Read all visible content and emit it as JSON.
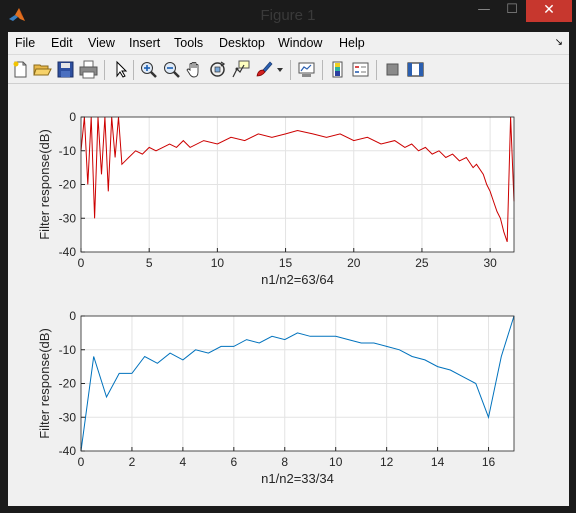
{
  "window": {
    "title": "Figure 1",
    "controls": {
      "minimize": "—",
      "maximize": "☐",
      "close": "✕"
    }
  },
  "menu": [
    "File",
    "Edit",
    "View",
    "Insert",
    "Tools",
    "Desktop",
    "Window",
    "Help"
  ],
  "dock_arrow": "↘",
  "toolbar": [
    "new-figure-icon",
    "open-file-icon",
    "save-icon",
    "print-icon",
    "edit-plot-arrow-icon",
    "zoom-in-icon",
    "zoom-out-icon",
    "pan-hand-icon",
    "rotate-3d-icon",
    "data-cursor-icon",
    "brush-icon",
    "brush-dropdown-icon",
    "link-plot-icon",
    "colorbar-icon",
    "legend-icon",
    "hide-plot-tools-icon",
    "show-plot-tools-icon"
  ],
  "colors": {
    "top_series": "#cc0000",
    "bottom_series": "#0072bd",
    "close_button": "#c7372e"
  },
  "chart_data": [
    {
      "type": "line",
      "title": "",
      "xlabel": "n1/n2=63/64",
      "ylabel": "Filter response(dB)",
      "xlim": [
        0,
        31.75
      ],
      "ylim": [
        -40,
        0
      ],
      "xticks": [
        0,
        5,
        10,
        15,
        20,
        25,
        30
      ],
      "yticks": [
        0,
        -10,
        -20,
        -30,
        -40
      ],
      "grid": true,
      "series": [
        {
          "color": "#cc0000",
          "x": [
            0,
            0.25,
            0.5,
            0.75,
            1.0,
            1.25,
            1.5,
            1.75,
            2.0,
            2.25,
            2.5,
            2.75,
            3.0,
            3.5,
            4.0,
            4.5,
            5.0,
            5.5,
            6.0,
            6.5,
            7.0,
            7.5,
            8.0,
            9.0,
            10.0,
            11.0,
            12.0,
            13.0,
            14.0,
            15.0,
            15.875,
            17.0,
            18.0,
            19.0,
            20.0,
            21.0,
            22.0,
            23.0,
            23.75,
            24.25,
            24.75,
            25.25,
            25.75,
            26.25,
            26.75,
            27.25,
            27.75,
            28.25,
            28.75,
            29.0,
            29.5,
            29.75,
            30.0,
            30.25,
            30.5,
            30.75,
            31.0,
            31.25,
            31.5,
            31.75
          ],
          "y": [
            -10,
            0,
            -20,
            0,
            -30,
            0,
            -17,
            0,
            -22,
            0,
            -12,
            0,
            -14,
            -12,
            -10,
            -11,
            -9,
            -10,
            -9,
            -8,
            -9,
            -7,
            -9,
            -7,
            -8,
            -6,
            -7,
            -5,
            -6,
            -5,
            -4,
            -5,
            -6,
            -5,
            -7,
            -6,
            -8,
            -7,
            -9,
            -8,
            -10,
            -9,
            -11,
            -10,
            -12,
            -11,
            -13,
            -12,
            -15,
            -14,
            -17,
            -20,
            -22,
            -25,
            -28,
            -30,
            -34,
            -37,
            0,
            -25
          ]
        }
      ]
    },
    {
      "type": "line",
      "title": "",
      "xlabel": "n1/n2=33/34",
      "ylabel": "Filter response(dB)",
      "xlim": [
        0,
        17
      ],
      "ylim": [
        -40,
        0
      ],
      "xticks": [
        0,
        2,
        4,
        6,
        8,
        10,
        12,
        14,
        16
      ],
      "yticks": [
        0,
        -10,
        -20,
        -30,
        -40
      ],
      "grid": true,
      "series": [
        {
          "color": "#0072bd",
          "x": [
            0,
            0.5,
            1.0,
            1.5,
            2.0,
            2.5,
            3.0,
            3.5,
            4.0,
            4.5,
            5.0,
            5.5,
            6.0,
            6.5,
            7.0,
            7.5,
            8.0,
            8.5,
            9.0,
            9.5,
            10.0,
            10.5,
            11.0,
            11.5,
            12.0,
            12.5,
            13.0,
            13.5,
            14.0,
            14.5,
            15.0,
            15.5,
            16.0,
            16.5,
            17.0
          ],
          "y": [
            -40,
            -12,
            -24,
            -17,
            -17,
            -12,
            -14,
            -11,
            -13,
            -10,
            -11,
            -9,
            -9,
            -7,
            -8,
            -6,
            -7,
            -5,
            -6,
            -6,
            -6,
            -7,
            -8,
            -8,
            -9,
            -10,
            -12,
            -13,
            -15,
            -16,
            -18,
            -20,
            -30,
            -12,
            0
          ]
        }
      ]
    }
  ]
}
